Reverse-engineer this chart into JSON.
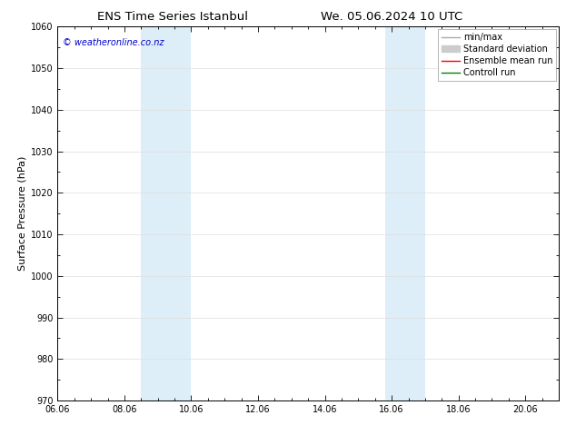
{
  "title_left": "ENS Time Series Istanbul",
  "title_right": "We. 05.06.2024 10 UTC",
  "ylabel": "Surface Pressure (hPa)",
  "ylim": [
    970,
    1060
  ],
  "yticks": [
    970,
    980,
    990,
    1000,
    1010,
    1020,
    1030,
    1040,
    1050,
    1060
  ],
  "xlim_start": 0.0,
  "xlim_end": 15.0,
  "xtick_labels": [
    "06.06",
    "08.06",
    "10.06",
    "12.06",
    "14.06",
    "16.06",
    "18.06",
    "20.06"
  ],
  "xtick_positions": [
    0,
    2,
    4,
    6,
    8,
    10,
    12,
    14
  ],
  "shaded_bands": [
    {
      "x_start": 2.5,
      "x_end": 4.0
    },
    {
      "x_start": 9.8,
      "x_end": 11.0
    }
  ],
  "shaded_color": "#ddeef8",
  "watermark_text": "© weatheronline.co.nz",
  "watermark_color": "#0000cc",
  "legend_entries": [
    {
      "label": "min/max",
      "color": "#aaaaaa",
      "lw": 1.0,
      "type": "line"
    },
    {
      "label": "Standard deviation",
      "color": "#cccccc",
      "lw": 5,
      "type": "bar"
    },
    {
      "label": "Ensemble mean run",
      "color": "#ff0000",
      "lw": 1.0,
      "type": "line"
    },
    {
      "label": "Controll run",
      "color": "#008000",
      "lw": 1.0,
      "type": "line"
    }
  ],
  "background_color": "#ffffff",
  "tick_fontsize": 7,
  "ylabel_fontsize": 8,
  "title_fontsize": 9.5,
  "watermark_fontsize": 7,
  "legend_fontsize": 7
}
